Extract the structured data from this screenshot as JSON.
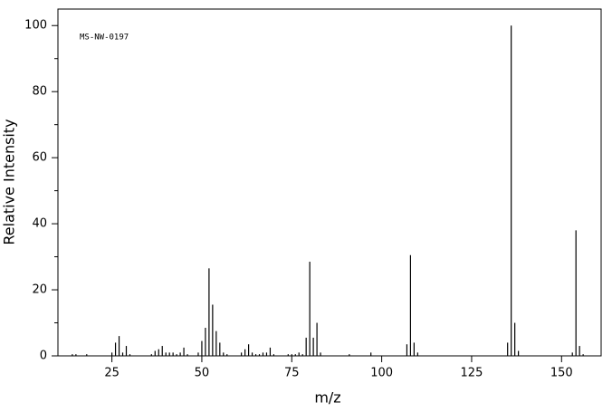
{
  "chart_data": {
    "type": "stem",
    "annotation": "MS-NW-0197",
    "xlabel": "m/z",
    "ylabel": "Relative Intensity",
    "x": [
      14,
      15,
      18,
      25,
      26,
      27,
      28,
      29,
      30,
      36,
      37,
      38,
      39,
      40,
      41,
      42,
      43,
      44,
      45,
      46,
      49,
      50,
      51,
      52,
      53,
      54,
      55,
      56,
      57,
      61,
      62,
      63,
      64,
      65,
      66,
      67,
      68,
      69,
      70,
      74,
      75,
      76,
      77,
      78,
      79,
      80,
      81,
      82,
      83,
      91,
      97,
      107,
      108,
      109,
      110,
      135,
      136,
      137,
      138,
      153,
      154,
      155,
      156
    ],
    "values": [
      0.5,
      0.5,
      0.5,
      1,
      4,
      6,
      1,
      3,
      0.5,
      0.5,
      1.5,
      2,
      3,
      1,
      1,
      1,
      0.5,
      1,
      2.5,
      0.5,
      1,
      4.5,
      8.5,
      26.5,
      15.5,
      7.5,
      4,
      1,
      0.5,
      1,
      2,
      3.5,
      1,
      0.5,
      0.5,
      1,
      1,
      2.5,
      0.5,
      0.5,
      0.5,
      0.5,
      1,
      0.5,
      5.5,
      28.5,
      5.5,
      10,
      1,
      0.5,
      1,
      3.5,
      30.5,
      4,
      1,
      4,
      100,
      10,
      1.5,
      1,
      38,
      3,
      0.5
    ],
    "color": "#000000",
    "xlim": [
      10,
      161
    ],
    "xticks": [
      25,
      50,
      75,
      100,
      125,
      150
    ],
    "ylim": [
      0,
      105
    ],
    "yticks": [
      0,
      20,
      40,
      60,
      80,
      100
    ],
    "yminorticks": [
      10,
      30,
      50,
      70,
      90
    ]
  }
}
